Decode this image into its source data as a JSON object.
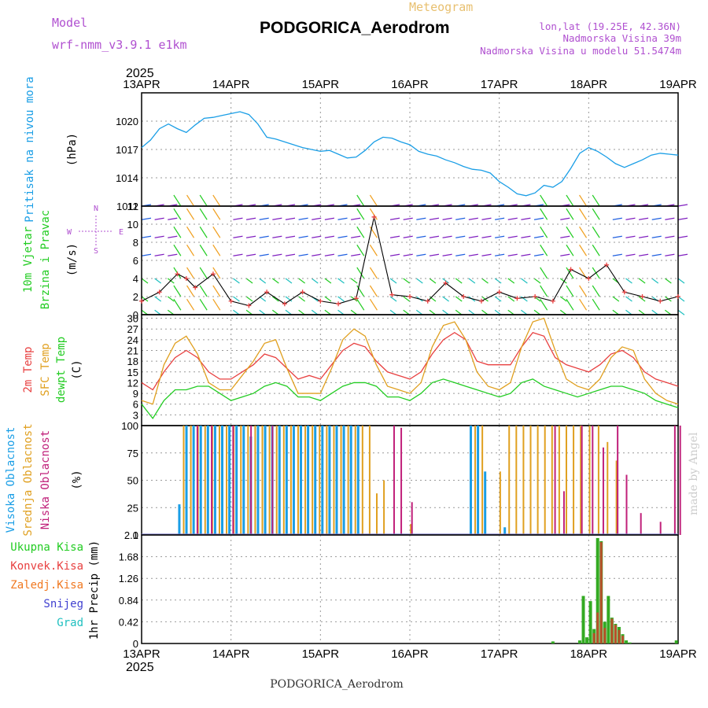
{
  "header": {
    "model_label": "Model",
    "model_version": "wrf-nmm_v3.9.1 e1km",
    "meteogram": "Meteogram",
    "station": "PODGORICA_Aerodrom",
    "lonlat": "lon,lat (19.25E, 42.36N)",
    "elevation": "Nadmorska Visina 39m",
    "model_elevation": "Nadmorska Visina u modelu 51.5474m",
    "year_top": "2025",
    "year_bottom": "2025",
    "footer_station": "PODGORICA_Aerodrom",
    "credit": "made by Angel"
  },
  "colors": {
    "pressure": "#1a9ee6",
    "wind_green": "#22cc22",
    "temp_red": "#e84040",
    "sfc_orange": "#e0a020",
    "dew_green": "#22cc22",
    "cloud_high": "#1a9ee6",
    "cloud_mid": "#e0a020",
    "cloud_low": "#c0207a",
    "precip_total": "#22cc22",
    "precip_conv": "#e84040",
    "precip_frozen": "#f07820",
    "snow": "#4040d0",
    "hail": "#20c0c0",
    "magenta_text": "#b050d0"
  },
  "chart_data": [
    {
      "type": "line",
      "panel": "pressure",
      "ylabel_lines": [
        "Pritisak na nivou mora"
      ],
      "unit": "(hPa)",
      "x_ticks": [
        "13APR",
        "14APR",
        "15APR",
        "16APR",
        "17APR",
        "18APR",
        "19APR"
      ],
      "ylim": [
        1011,
        1023
      ],
      "y_ticks": [
        "1011",
        "1014",
        "1017",
        "1020"
      ],
      "series": [
        {
          "x": [
            0,
            0.1,
            0.2,
            0.3,
            0.4,
            0.5,
            0.6,
            0.7,
            0.8,
            0.9,
            1.0,
            1.1,
            1.2,
            1.3,
            1.4,
            1.5,
            1.6,
            1.7,
            1.8,
            1.9,
            2.0,
            2.1,
            2.2,
            2.3,
            2.4,
            2.5,
            2.6,
            2.7,
            2.8,
            2.9,
            3.0,
            3.1,
            3.2,
            3.3,
            3.4,
            3.5,
            3.6,
            3.7,
            3.8,
            3.9,
            4.0,
            4.1,
            4.2,
            4.3,
            4.4,
            4.5,
            4.6,
            4.7,
            4.8,
            4.9,
            5.0,
            5.1,
            5.2,
            5.3,
            5.4,
            5.5,
            5.6,
            5.7,
            5.8,
            5.9,
            6.0
          ],
          "values": [
            1017.2,
            1018.0,
            1019.2,
            1019.7,
            1019.2,
            1018.8,
            1019.6,
            1020.3,
            1020.4,
            1020.6,
            1020.8,
            1021.0,
            1020.7,
            1019.7,
            1018.3,
            1018.1,
            1017.8,
            1017.5,
            1017.2,
            1017.0,
            1016.8,
            1016.9,
            1016.5,
            1016.1,
            1016.2,
            1016.9,
            1017.8,
            1018.3,
            1018.2,
            1017.8,
            1017.5,
            1016.8,
            1016.5,
            1016.3,
            1015.9,
            1015.6,
            1015.2,
            1014.9,
            1014.8,
            1014.5,
            1013.6,
            1013.0,
            1012.3,
            1012.1,
            1012.4,
            1013.2,
            1013.0,
            1013.6,
            1015.0,
            1016.6,
            1017.2,
            1016.8,
            1016.2,
            1015.5,
            1015.1,
            1015.5,
            1015.9,
            1016.4,
            1016.6,
            1016.5,
            1016.4
          ]
        }
      ]
    },
    {
      "type": "line",
      "panel": "wind",
      "ylabel_lines": [
        "10m Vjetar",
        "Brzina i Pravac"
      ],
      "unit": "(m/s)",
      "compass": {
        "north": "N",
        "south": "S",
        "west": "W",
        "east": "E"
      },
      "x_ticks": [
        "13APR",
        "14APR",
        "15APR",
        "16APR",
        "17APR",
        "18APR",
        "19APR"
      ],
      "ylim": [
        0,
        12
      ],
      "y_ticks": [
        "0",
        "2",
        "4",
        "6",
        "8",
        "10",
        "12"
      ],
      "series": [
        {
          "name": "speed",
          "x": [
            0,
            0.2,
            0.4,
            0.5,
            0.6,
            0.8,
            1.0,
            1.2,
            1.4,
            1.6,
            1.8,
            2.0,
            2.2,
            2.4,
            2.6,
            2.8,
            3.0,
            3.2,
            3.4,
            3.6,
            3.8,
            4.0,
            4.2,
            4.4,
            4.6,
            4.8,
            5.0,
            5.2,
            5.4,
            5.6,
            5.8,
            6.0
          ],
          "values": [
            1.5,
            2.5,
            4.5,
            4.0,
            3.0,
            4.5,
            1.5,
            1.0,
            2.5,
            1.2,
            2.5,
            1.5,
            1.2,
            1.8,
            10.8,
            2.2,
            2.0,
            1.5,
            3.5,
            2.0,
            1.5,
            2.5,
            1.8,
            2.0,
            1.5,
            5.0,
            4.0,
            5.5,
            2.5,
            2.0,
            1.5,
            2.0
          ]
        }
      ]
    },
    {
      "type": "line",
      "panel": "temperature",
      "ylabel_lines": [
        "2m Temp",
        "SFC Temp",
        "dewpt Temp"
      ],
      "unit": "(C)",
      "x_ticks": [
        "13APR",
        "14APR",
        "15APR",
        "16APR",
        "17APR",
        "18APR",
        "19APR"
      ],
      "ylim": [
        0,
        31
      ],
      "y_ticks": [
        "3",
        "6",
        "9",
        "12",
        "15",
        "18",
        "21",
        "24",
        "27",
        "30"
      ],
      "x": [
        0,
        0.125,
        0.25,
        0.375,
        0.5,
        0.625,
        0.75,
        0.875,
        1.0,
        1.125,
        1.25,
        1.375,
        1.5,
        1.625,
        1.75,
        1.875,
        2.0,
        2.125,
        2.25,
        2.375,
        2.5,
        2.625,
        2.75,
        2.875,
        3.0,
        3.125,
        3.25,
        3.375,
        3.5,
        3.625,
        3.75,
        3.875,
        4.0,
        4.125,
        4.25,
        4.375,
        4.5,
        4.625,
        4.75,
        4.875,
        5.0,
        5.125,
        5.25,
        5.375,
        5.5,
        5.625,
        5.75,
        5.875,
        6.0
      ],
      "series": [
        {
          "name": "2m Temp",
          "values": [
            12,
            10,
            15,
            19,
            21,
            19,
            15,
            13,
            13,
            15,
            17,
            20,
            19,
            16,
            13,
            14,
            13,
            17,
            21,
            23,
            22,
            18,
            15,
            14,
            13,
            15,
            20,
            24,
            26,
            24,
            18,
            17,
            17,
            17,
            22,
            26,
            25,
            19,
            17,
            16,
            15,
            17,
            20,
            21,
            19,
            15,
            13,
            12,
            11
          ]
        },
        {
          "name": "SFC Temp",
          "values": [
            7,
            6,
            17,
            23,
            25,
            20,
            12,
            10,
            10,
            14,
            18,
            23,
            24,
            16,
            9,
            9,
            9,
            16,
            24,
            27,
            25,
            17,
            11,
            10,
            9,
            12,
            22,
            28,
            29,
            24,
            15,
            11,
            10,
            12,
            22,
            29,
            30,
            21,
            13,
            11,
            10,
            13,
            19,
            22,
            21,
            13,
            9,
            7,
            6
          ]
        },
        {
          "name": "dewpt Temp",
          "values": [
            6,
            2,
            7,
            10,
            10,
            11,
            11,
            9,
            7,
            8,
            9,
            11,
            12,
            11,
            8,
            8,
            7,
            9,
            11,
            12,
            12,
            11,
            8,
            8,
            7,
            9,
            12,
            13,
            12,
            11,
            10,
            9,
            8,
            9,
            12,
            13,
            11,
            10,
            9,
            8,
            9,
            10,
            11,
            11,
            10,
            9,
            7,
            6,
            5
          ]
        }
      ]
    },
    {
      "type": "bar",
      "panel": "clouds",
      "ylabel_lines": [
        "Visoka Oblacnost",
        "Srednja Oblacnost",
        "Niska Oblacnost"
      ],
      "unit": "(%)",
      "x_ticks": [
        "13APR",
        "14APR",
        "15APR",
        "16APR",
        "17APR",
        "18APR",
        "19APR"
      ],
      "ylim": [
        0,
        100
      ],
      "y_ticks": [
        "0",
        "25",
        "50",
        "75",
        "100"
      ],
      "series": [
        {
          "name": "Visoka Oblacnost",
          "x": [
            0.42,
            0.5,
            0.58,
            0.66,
            0.74,
            0.82,
            0.9,
            0.98,
            1.06,
            1.14,
            1.22,
            1.3,
            1.38,
            1.46,
            1.54,
            1.62,
            1.7,
            1.78,
            1.86,
            1.94,
            2.02,
            2.1,
            2.18,
            2.26,
            2.34,
            2.42,
            3.68,
            3.76,
            3.84,
            4.06
          ],
          "values": [
            28,
            100,
            100,
            100,
            100,
            100,
            100,
            100,
            100,
            100,
            90,
            100,
            100,
            100,
            100,
            100,
            100,
            100,
            100,
            100,
            100,
            100,
            100,
            100,
            100,
            100,
            100,
            100,
            58,
            7
          ]
        },
        {
          "name": "Srednja Oblacnost",
          "x": [
            0.46,
            0.54,
            0.62,
            0.7,
            0.78,
            0.86,
            0.94,
            1.02,
            1.1,
            1.18,
            1.26,
            1.34,
            1.42,
            1.5,
            1.58,
            1.66,
            1.74,
            1.82,
            1.9,
            1.98,
            2.06,
            2.14,
            2.22,
            2.3,
            2.38,
            2.46,
            2.54,
            2.62,
            2.7,
            3.0,
            3.72,
            3.8,
            4.0,
            4.1,
            4.18,
            4.26,
            4.34,
            4.42,
            4.5,
            4.58,
            4.66,
            4.74,
            4.82,
            4.9,
            5.0,
            5.1,
            5.2,
            5.3
          ],
          "values": [
            100,
            100,
            100,
            100,
            100,
            100,
            100,
            100,
            100,
            100,
            100,
            100,
            100,
            100,
            100,
            100,
            100,
            100,
            100,
            100,
            100,
            100,
            100,
            100,
            100,
            100,
            100,
            38,
            50,
            10,
            100,
            100,
            58,
            100,
            100,
            100,
            100,
            100,
            100,
            100,
            100,
            100,
            100,
            100,
            100,
            100,
            85,
            68
          ]
        },
        {
          "name": "Niska Oblacnost",
          "x": [
            0.6,
            0.76,
            1.0,
            1.2,
            1.44,
            2.8,
            2.88,
            3.0,
            4.6,
            4.7,
            4.9,
            5.02,
            5.14,
            5.3,
            5.4,
            5.56,
            5.78,
            5.94,
            6.0
          ],
          "values": [
            100,
            100,
            100,
            100,
            100,
            100,
            98,
            30,
            100,
            40,
            100,
            100,
            80,
            100,
            55,
            20,
            12,
            100,
            100
          ]
        }
      ]
    },
    {
      "type": "bar",
      "panel": "precipitation",
      "ylabel_lines": [
        "1hr Precip (mm)"
      ],
      "legend": [
        "Ukupna Kisa",
        "Konvek.Kisa",
        "Zaledj.Kisa",
        "Snijeg",
        "Grad"
      ],
      "x_ticks": [
        "13APR",
        "14APR",
        "15APR",
        "16APR",
        "17APR",
        "18APR",
        "19APR"
      ],
      "ylim": [
        0,
        2.1
      ],
      "y_ticks": [
        "0",
        "0.42",
        "0.84",
        "1.26",
        "1.68",
        "2.1"
      ],
      "series": [
        {
          "name": "Ukupna Kisa",
          "x": [
            4.6,
            4.9,
            4.94,
            4.98,
            5.02,
            5.06,
            5.1,
            5.14,
            5.18,
            5.22,
            5.26,
            5.3,
            5.34,
            5.38,
            5.42,
            5.46,
            5.98
          ],
          "values": [
            0.04,
            0.06,
            0.92,
            0.12,
            0.82,
            0.28,
            2.04,
            1.98,
            0.42,
            0.92,
            0.5,
            0.38,
            0.32,
            0.18,
            0.06,
            0.02,
            0.06
          ]
        },
        {
          "name": "Konvek.Kisa",
          "x": [
            5.06,
            5.1,
            5.14,
            5.18,
            5.26,
            5.3,
            5.34,
            5.38
          ],
          "values": [
            0.2,
            0.6,
            1.96,
            0.3,
            0.48,
            0.36,
            0.26,
            0.15
          ]
        }
      ]
    }
  ]
}
